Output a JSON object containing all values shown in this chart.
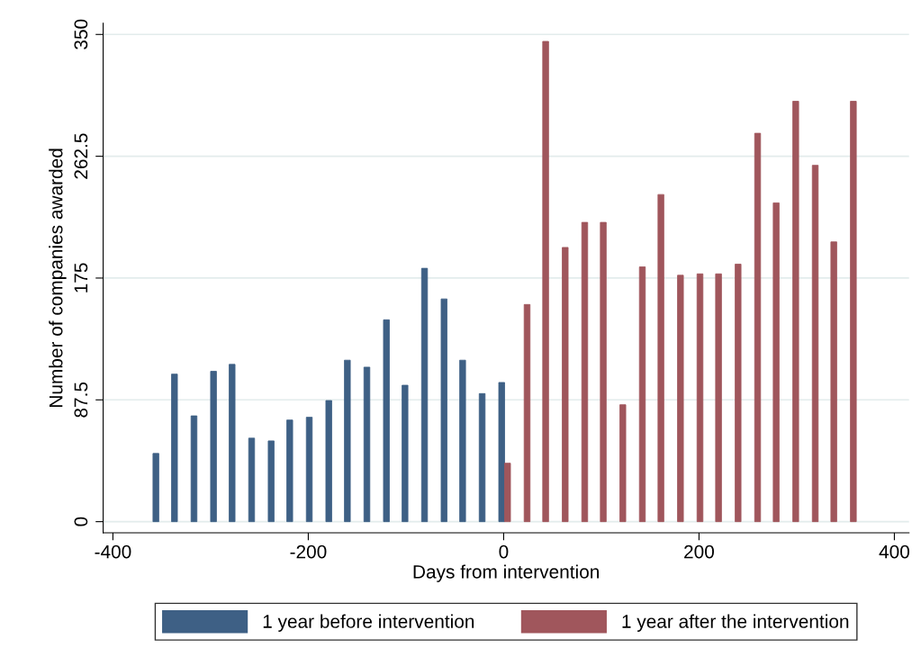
{
  "chart_data": {
    "type": "bar",
    "xlabel": "Days from intervention",
    "ylabel": "Number of companies awarded",
    "xlim": [
      -410,
      415
    ],
    "xticks": [
      -400,
      -200,
      0,
      200,
      400
    ],
    "ylim": [
      -8,
      358
    ],
    "yticks": [
      0,
      87.5,
      175,
      262.5,
      350
    ],
    "grid": "y",
    "legend": "bottom",
    "series": [
      {
        "name": "1 year before intervention",
        "color": "#3e6085",
        "x": [
          -356,
          -337,
          -317,
          -297,
          -278,
          -258,
          -238,
          -219,
          -199,
          -179,
          -160,
          -140,
          -120,
          -101,
          -81,
          -61,
          -42,
          -22,
          -2
        ],
        "values": [
          49,
          106,
          76,
          108,
          113,
          60,
          58,
          73,
          75,
          87,
          116,
          111,
          145,
          98,
          182,
          160,
          116,
          92,
          100
        ]
      },
      {
        "name": "1 year after the intervention",
        "color": "#a0565c",
        "x": [
          4,
          24,
          43,
          63,
          83,
          102,
          122,
          142,
          161,
          181,
          201,
          220,
          240,
          260,
          279,
          299,
          319,
          338,
          358
        ],
        "values": [
          42,
          156,
          345,
          197,
          215,
          215,
          84,
          183,
          235,
          177,
          178,
          178,
          185,
          279,
          229,
          302,
          256,
          201,
          302
        ]
      }
    ]
  }
}
